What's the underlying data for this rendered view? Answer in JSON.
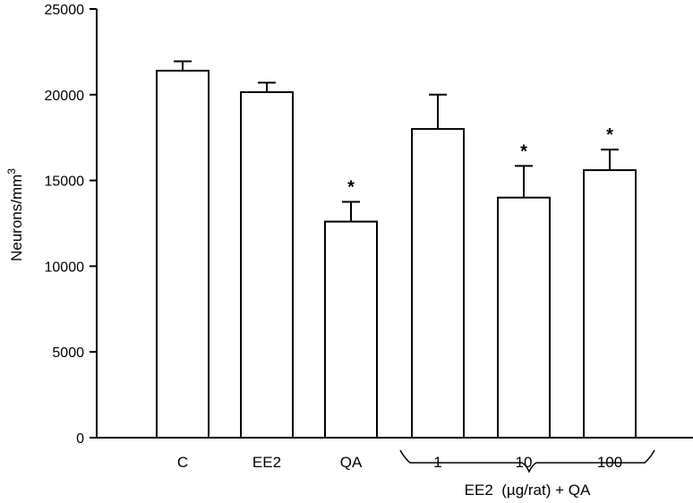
{
  "chart_data": {
    "type": "bar",
    "categories": [
      "C",
      "EE2",
      "QA",
      "1",
      "10",
      "100"
    ],
    "values": [
      21400,
      20150,
      12600,
      18000,
      14000,
      15600
    ],
    "errors": [
      550,
      550,
      1150,
      2000,
      1850,
      1200
    ],
    "significance": [
      "",
      "",
      "*",
      "",
      "*",
      "*"
    ],
    "ylabel": "Neurons/mm",
    "ylabel_sup": "3",
    "ylim": [
      0,
      25000
    ],
    "yticks": [
      0,
      5000,
      10000,
      15000,
      20000,
      25000
    ],
    "group_label": "EE2  (µg/rat) + QA",
    "grid": false,
    "bar_fill": "#ffffff",
    "bar_stroke": "#000000"
  }
}
